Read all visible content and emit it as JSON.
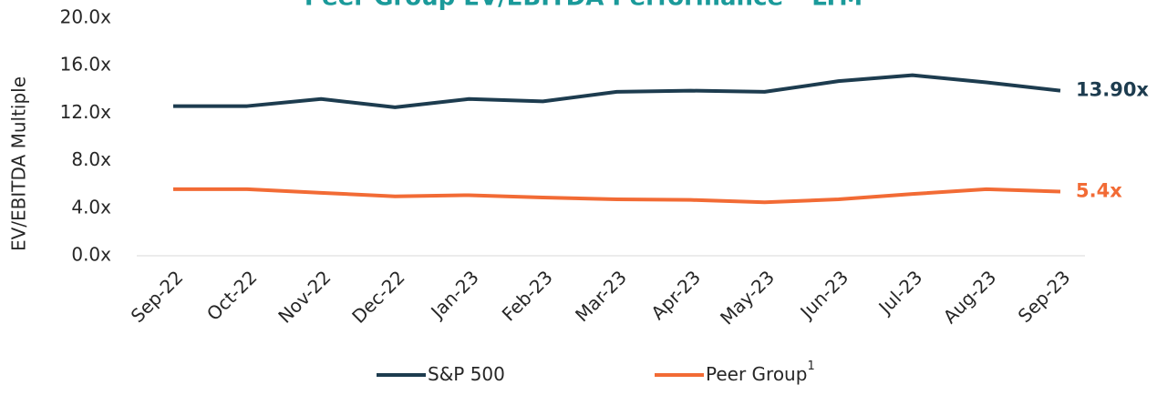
{
  "chart_data": {
    "type": "line",
    "title": "Peer Group EV/EBITDA Performance – LTM",
    "y_label": "EV/EBITDA Multiple",
    "categories": [
      "Sep-22",
      "Oct-22",
      "Nov-22",
      "Dec-22",
      "Jan-23",
      "Feb-23",
      "Mar-23",
      "Apr-23",
      "May-23",
      "Jun-23",
      "Jul-23",
      "Aug-23",
      "Sep-23"
    ],
    "series": [
      {
        "name": "S&P 500",
        "color": "#1d3c4f",
        "values": [
          12.6,
          12.6,
          13.2,
          12.5,
          13.2,
          13.0,
          13.8,
          13.9,
          13.8,
          14.7,
          15.2,
          14.6,
          13.9
        ],
        "value_labels": [
          null,
          null,
          null,
          null,
          null,
          null,
          null,
          null,
          null,
          null,
          null,
          null,
          "13.90x"
        ]
      },
      {
        "name": "Peer Group",
        "superscript": "1",
        "color": "#f26b35",
        "values": [
          5.6,
          5.6,
          5.3,
          5.0,
          5.1,
          4.9,
          4.75,
          4.7,
          4.5,
          4.75,
          5.2,
          5.6,
          5.4
        ],
        "value_labels": [
          null,
          null,
          null,
          null,
          null,
          null,
          null,
          null,
          null,
          null,
          null,
          null,
          "5.4x"
        ]
      }
    ],
    "ylim": [
      0,
      20
    ],
    "yticks": [
      {
        "value": 0,
        "label": "0.0x"
      },
      {
        "value": 4,
        "label": "4.0x"
      },
      {
        "value": 8,
        "label": "8.0x"
      },
      {
        "value": 12,
        "label": "12.0x"
      },
      {
        "value": 16,
        "label": "16.0x"
      },
      {
        "value": 20,
        "label": "20.0x"
      }
    ],
    "legend": "bottom"
  }
}
